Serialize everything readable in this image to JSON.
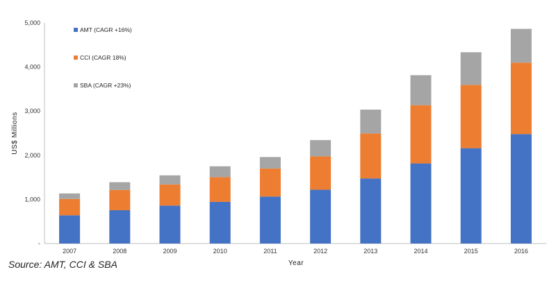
{
  "chart_data": {
    "type": "bar",
    "stacked": true,
    "categories": [
      "2007",
      "2008",
      "2009",
      "2010",
      "2011",
      "2012",
      "2013",
      "2014",
      "2015",
      "2016"
    ],
    "series": [
      {
        "name": "AMT (CAGR +16%)",
        "color": "#4472c4",
        "values": [
          640,
          755,
          860,
          945,
          1065,
          1220,
          1475,
          1815,
          2160,
          2480
        ]
      },
      {
        "name": "CCI (CAGR 18%)",
        "color": "#ed7d31",
        "values": [
          370,
          460,
          480,
          560,
          635,
          755,
          1020,
          1320,
          1435,
          1620
        ]
      },
      {
        "name": "SBA (CAGR +23%)",
        "color": "#a5a5a5",
        "values": [
          125,
          175,
          205,
          245,
          260,
          370,
          540,
          680,
          740,
          765
        ]
      }
    ],
    "xlabel": "Year",
    "ylabel": "US$ Millions",
    "ylim": [
      0,
      5000
    ],
    "yticks": [
      "-",
      "1,000",
      "2,000",
      "3,000",
      "4,000",
      "5,000"
    ],
    "grid": false,
    "legend_position": "top-left"
  },
  "source_note": "Source: AMT, CCI & SBA"
}
